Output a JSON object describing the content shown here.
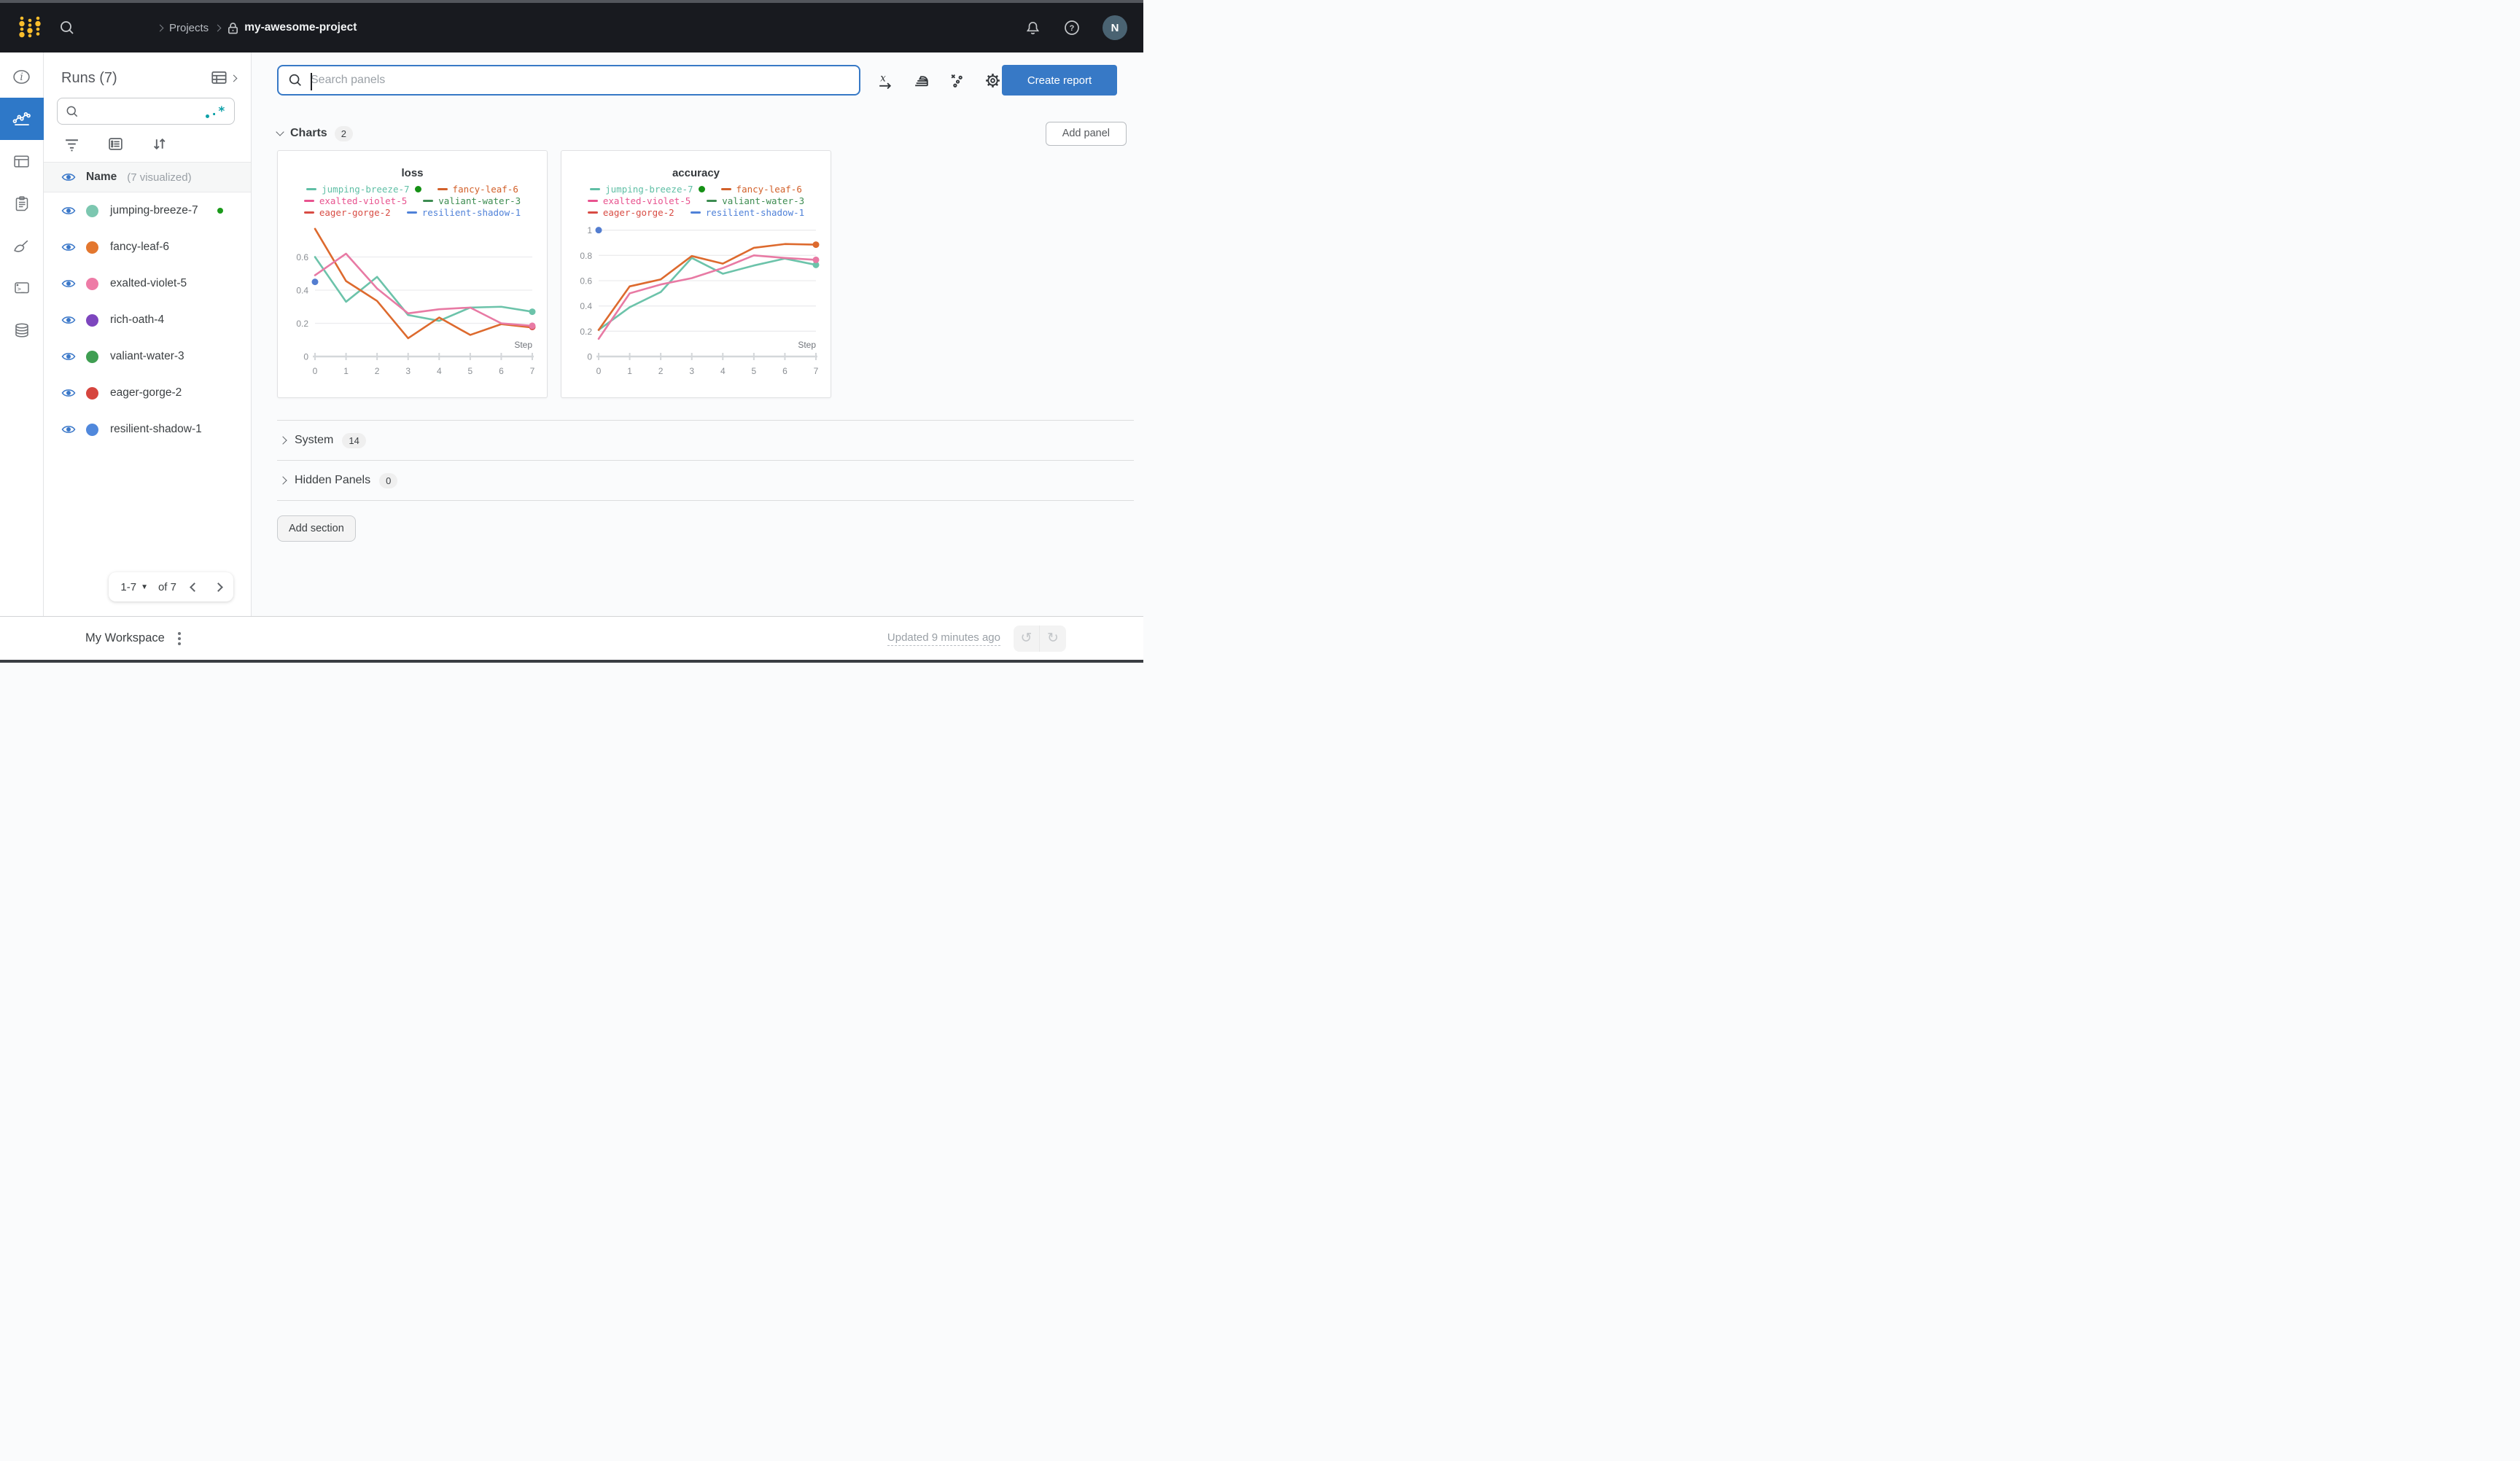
{
  "navbar": {
    "breadcrumb": {
      "projects": "Projects",
      "project_name": "my-awesome-project"
    },
    "avatar_initial": "N"
  },
  "runs_panel": {
    "title": "Runs (7)",
    "name_header": "Name",
    "visualized_note": "(7 visualized)",
    "runs": [
      {
        "name": "jumping-breeze-7",
        "color": "#7cc7b0",
        "live": true
      },
      {
        "name": "fancy-leaf-6",
        "color": "#e3772f",
        "live": false
      },
      {
        "name": "exalted-violet-5",
        "color": "#ee7ba6",
        "live": false
      },
      {
        "name": "rich-oath-4",
        "color": "#7d46be",
        "live": false
      },
      {
        "name": "valiant-water-3",
        "color": "#3f9e52",
        "live": false
      },
      {
        "name": "eager-gorge-2",
        "color": "#d6453e",
        "live": false
      },
      {
        "name": "resilient-shadow-1",
        "color": "#5088dc",
        "live": false
      }
    ],
    "pagination": {
      "range": "1-7",
      "of": "of 7"
    }
  },
  "toolbar": {
    "search_placeholder": "Search panels",
    "create_report": "Create report"
  },
  "sections": {
    "charts": {
      "label": "Charts",
      "count": "2",
      "add_panel": "Add panel"
    },
    "system": {
      "label": "System",
      "count": "14"
    },
    "hidden": {
      "label": "Hidden Panels",
      "count": "0"
    },
    "add_section": "Add section"
  },
  "footer": {
    "workspace": "My Workspace",
    "updated": "Updated 9 minutes ago"
  },
  "chart_data": [
    {
      "type": "line",
      "title": "loss",
      "xlabel": "Step",
      "x": [
        0,
        1,
        2,
        3,
        4,
        5,
        6,
        7
      ],
      "xlim": [
        0,
        7
      ],
      "ylim": [
        0,
        0.8
      ],
      "y_ticks": [
        0,
        0.2,
        0.4,
        0.6
      ],
      "x_ticks": [
        0,
        1,
        2,
        3,
        4,
        5,
        6,
        7
      ],
      "grid": true,
      "legend_position": "top",
      "legend": [
        {
          "name": "jumping-breeze-7",
          "color": "#5fbfa5",
          "live_dot": true
        },
        {
          "name": "fancy-leaf-6",
          "color": "#d2602a"
        },
        {
          "name": "exalted-violet-5",
          "color": "#e8538f"
        },
        {
          "name": "valiant-water-3",
          "color": "#3d8c51"
        },
        {
          "name": "eager-gorge-2",
          "color": "#d84c44"
        },
        {
          "name": "resilient-shadow-1",
          "color": "#4f81d8"
        }
      ],
      "series": [
        {
          "name": "jumping-breeze-7",
          "color": "#6cc3aa",
          "values": [
            0.6,
            0.33,
            0.48,
            0.25,
            0.215,
            0.295,
            0.3,
            0.27
          ],
          "end_dot": true
        },
        {
          "name": "fancy-leaf-6",
          "color": "#dd6a2e",
          "values": [
            0.77,
            0.455,
            0.335,
            0.11,
            0.235,
            0.13,
            0.195,
            0.175
          ]
        },
        {
          "name": "valiant-water-3",
          "color": "#448d52",
          "values": []
        },
        {
          "name": "eager-gorge-2",
          "color": "#d8504a",
          "values": [],
          "points": [
            [
              7,
              0.178
            ]
          ]
        },
        {
          "name": "exalted-violet-5",
          "color": "#e87aa4",
          "values": [
            0.49,
            0.62,
            0.41,
            0.26,
            0.285,
            0.295,
            0.2,
            0.185
          ],
          "end_dot": true
        },
        {
          "name": "resilient-shadow-1",
          "color": "#537dd0",
          "values": [],
          "points": [
            [
              0,
              0.45
            ]
          ]
        }
      ]
    },
    {
      "type": "line",
      "title": "accuracy",
      "xlabel": "Step",
      "x": [
        0,
        1,
        2,
        3,
        4,
        5,
        6,
        7
      ],
      "xlim": [
        0,
        7
      ],
      "ylim": [
        0,
        1.05
      ],
      "y_ticks": [
        0,
        0.2,
        0.4,
        0.6,
        0.8,
        1
      ],
      "x_ticks": [
        0,
        1,
        2,
        3,
        4,
        5,
        6,
        7
      ],
      "grid": true,
      "legend_position": "top",
      "legend": [
        {
          "name": "jumping-breeze-7",
          "color": "#5fbfa5",
          "live_dot": true
        },
        {
          "name": "fancy-leaf-6",
          "color": "#d2602a"
        },
        {
          "name": "exalted-violet-5",
          "color": "#e8538f"
        },
        {
          "name": "valiant-water-3",
          "color": "#3d8c51"
        },
        {
          "name": "eager-gorge-2",
          "color": "#d84c44"
        },
        {
          "name": "resilient-shadow-1",
          "color": "#4f81d8"
        }
      ],
      "series": [
        {
          "name": "jumping-breeze-7",
          "color": "#6cc3aa",
          "values": [
            0.21,
            0.39,
            0.51,
            0.78,
            0.655,
            0.72,
            0.775,
            0.725
          ],
          "end_dot": true
        },
        {
          "name": "valiant-water-3",
          "color": "#448d52",
          "values": []
        },
        {
          "name": "eager-gorge-2",
          "color": "#d8504a",
          "values": []
        },
        {
          "name": "exalted-violet-5",
          "color": "#e87aa4",
          "values": [
            0.14,
            0.5,
            0.57,
            0.62,
            0.7,
            0.8,
            0.78,
            0.765
          ],
          "end_dot": true
        },
        {
          "name": "fancy-leaf-6",
          "color": "#dd6a2e",
          "values": [
            0.21,
            0.555,
            0.61,
            0.795,
            0.735,
            0.86,
            0.89,
            0.885
          ],
          "end_dot": true
        },
        {
          "name": "resilient-shadow-1",
          "color": "#537dd0",
          "values": [],
          "points": [
            [
              0,
              1.0
            ]
          ]
        }
      ]
    }
  ]
}
